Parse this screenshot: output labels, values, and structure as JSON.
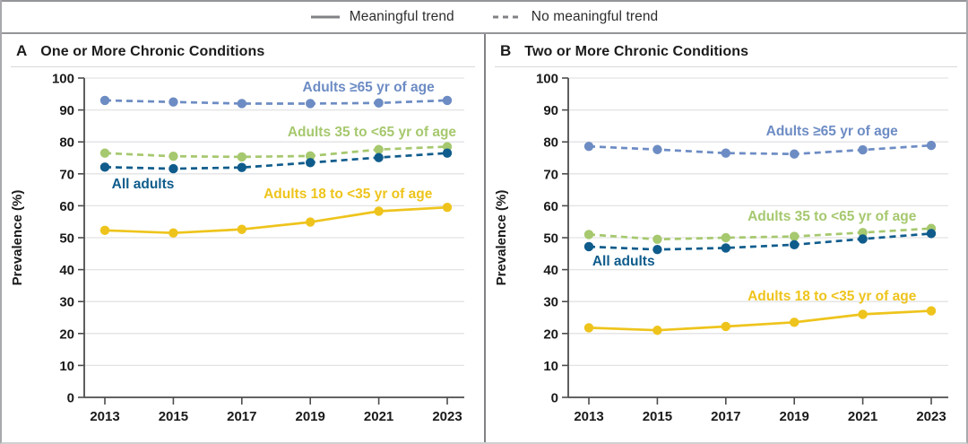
{
  "legend": {
    "meaningful_label": "Meaningful trend",
    "no_meaningful_label": "No meaningful trend"
  },
  "y_axis_label": "Prevalence (%)",
  "colors": {
    "adults_65_plus": "#6d8cc4",
    "adults_35_to_64": "#a6c86e",
    "all_adults": "#0f5c8c",
    "adults_18_to_34": "#eec41c",
    "legend_line": "#808285",
    "grid_line": "#e3e3e4",
    "axis_line": "#4d4d4f",
    "tick_text": "#1a1a1a"
  },
  "chart_data": [
    {
      "type": "line",
      "panel_letter": "A",
      "title": "One or More Chronic Conditions",
      "xlabel": "",
      "ylabel": "Prevalence (%)",
      "x": [
        2013,
        2015,
        2017,
        2019,
        2021,
        2023
      ],
      "ylim": [
        0,
        100
      ],
      "ytick_step": 10,
      "grid": true,
      "legend_position": "top",
      "series": [
        {
          "name": "Adults ≥65 yr of age",
          "values": [
            93.0,
            92.5,
            92.0,
            92.0,
            92.2,
            93.0
          ],
          "line_style": "dashed",
          "trend": "no meaningful trend",
          "color_key": "adults_65_plus",
          "label_anchor": {
            "year": 2020.7,
            "value": 95.8,
            "align": "middle"
          }
        },
        {
          "name": "Adults 35 to <65 yr of age",
          "values": [
            76.5,
            75.5,
            75.3,
            75.6,
            77.6,
            78.5
          ],
          "line_style": "dashed",
          "trend": "no meaningful trend",
          "color_key": "adults_35_to_64",
          "label_anchor": {
            "year": 2020.8,
            "value": 81.7,
            "align": "middle"
          }
        },
        {
          "name": "All adults",
          "values": [
            72.1,
            71.6,
            72.0,
            73.5,
            75.1,
            76.5
          ],
          "line_style": "dashed",
          "trend": "no meaningful trend",
          "color_key": "all_adults",
          "label_anchor": {
            "year": 2013.2,
            "value": 65.4,
            "align": "start"
          }
        },
        {
          "name": "Adults 18 to <35 yr of age",
          "values": [
            52.3,
            51.5,
            52.6,
            54.9,
            58.3,
            59.5
          ],
          "line_style": "solid",
          "trend": "meaningful trend",
          "color_key": "adults_18_to_34",
          "label_anchor": {
            "year": 2020.1,
            "value": 62.4,
            "align": "middle"
          }
        }
      ]
    },
    {
      "type": "line",
      "panel_letter": "B",
      "title": "Two or More Chronic Conditions",
      "xlabel": "",
      "ylabel": "Prevalence (%)",
      "x": [
        2013,
        2015,
        2017,
        2019,
        2021,
        2023
      ],
      "ylim": [
        0,
        100
      ],
      "ytick_step": 10,
      "grid": true,
      "legend_position": "top",
      "series": [
        {
          "name": "Adults ≥65 yr of age",
          "values": [
            78.6,
            77.6,
            76.5,
            76.2,
            77.5,
            78.9
          ],
          "line_style": "dashed",
          "trend": "no meaningful trend",
          "color_key": "adults_65_plus",
          "label_anchor": {
            "year": 2020.1,
            "value": 82.0,
            "align": "middle"
          }
        },
        {
          "name": "Adults 35 to <65 yr of age",
          "values": [
            51.0,
            49.5,
            50.0,
            50.4,
            51.6,
            52.9
          ],
          "line_style": "dashed",
          "trend": "no meaningful trend",
          "color_key": "adults_35_to_64",
          "label_anchor": {
            "year": 2020.1,
            "value": 55.3,
            "align": "middle"
          }
        },
        {
          "name": "All adults",
          "values": [
            47.2,
            46.3,
            46.8,
            47.8,
            49.6,
            51.3
          ],
          "line_style": "dashed",
          "trend": "no meaningful trend",
          "color_key": "all_adults",
          "label_anchor": {
            "year": 2013.1,
            "value": 41.3,
            "align": "start"
          }
        },
        {
          "name": "Adults 18 to <35 yr of age",
          "values": [
            21.8,
            21.0,
            22.2,
            23.5,
            26.0,
            27.1
          ],
          "line_style": "solid",
          "trend": "meaningful trend",
          "color_key": "adults_18_to_34",
          "label_anchor": {
            "year": 2020.1,
            "value": 30.3,
            "align": "middle"
          }
        }
      ]
    }
  ]
}
